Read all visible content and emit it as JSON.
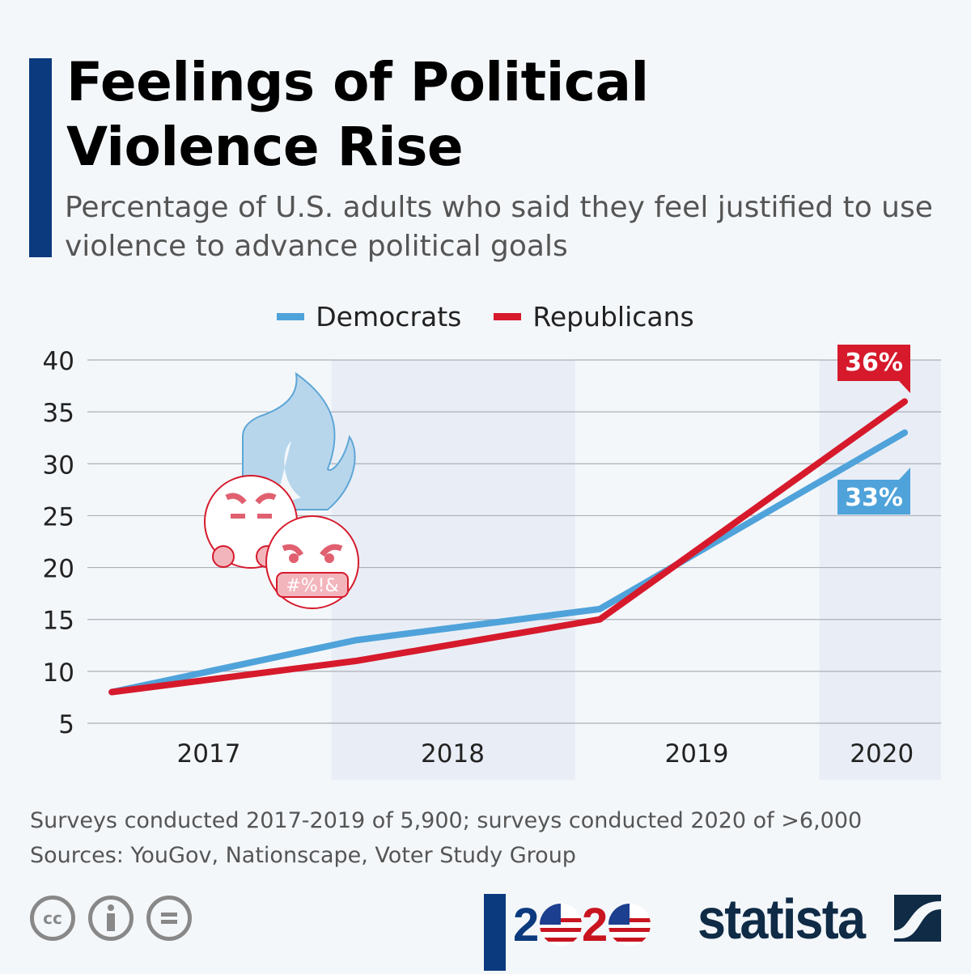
{
  "title": "Feelings of Political Violence Rise",
  "subtitle": "Percentage of U.S. adults who said they feel justified to use violence to advance political goals",
  "colors": {
    "democrats": "#4fa3da",
    "republicans": "#d61a2c",
    "accent": "#0b3a7e",
    "band": "#e9eef6"
  },
  "chart_data": {
    "type": "line",
    "title": "Feelings of Political Violence Rise",
    "xlabel": "",
    "ylabel": "",
    "ylim": [
      5,
      40
    ],
    "yticks": [
      "5",
      "10",
      "15",
      "20",
      "25",
      "30",
      "35",
      "40"
    ],
    "year_labels": [
      "2017",
      "2018",
      "2019",
      "2020"
    ],
    "x_positions_years": [
      2017.1,
      2018.1,
      2019.1,
      2020.35
    ],
    "series": [
      {
        "name": "Democrats",
        "values": [
          8,
          13,
          16,
          33
        ],
        "end_label": "33%"
      },
      {
        "name": "Republicans",
        "values": [
          8,
          11,
          15,
          36
        ],
        "end_label": "36%"
      }
    ],
    "grid": true,
    "legend": "top-center"
  },
  "footer": {
    "note": "Surveys conducted 2017-2019 of 5,900; surveys conducted 2020 of >6,000",
    "sources": "Sources: YouGov, Nationscape, Voter Study Group"
  },
  "branding": {
    "logo": "statista",
    "election_logo": "2020",
    "license_icons": [
      "cc-icon",
      "by-icon",
      "nd-icon"
    ]
  }
}
